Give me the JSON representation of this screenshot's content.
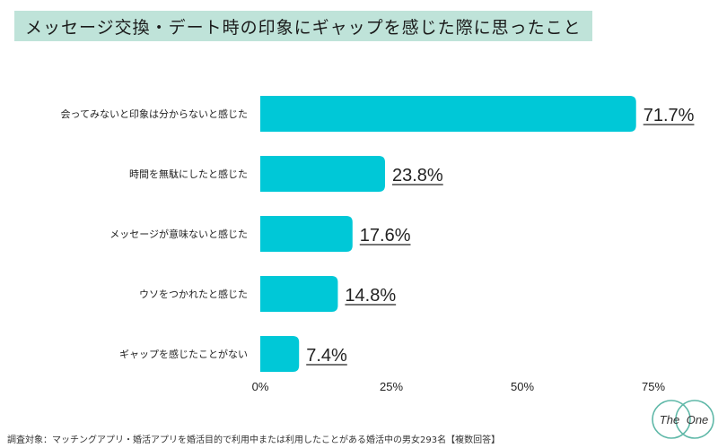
{
  "chart_data": {
    "type": "bar",
    "orientation": "horizontal",
    "title": "メッセージ交換・デート時の印象にギャップを感じた際に思ったこと",
    "categories": [
      "会ってみないと印象は分からないと感じた",
      "時間を無駄にしたと感じた",
      "メッセージが意味ないと感じた",
      "ウソをつかれたと感じた",
      "ギャップを感じたことがない"
    ],
    "values": [
      71.7,
      23.8,
      17.6,
      14.8,
      7.4
    ],
    "value_labels": [
      "71.7%",
      "23.8%",
      "17.6%",
      "14.8%",
      "7.4%"
    ],
    "xlim": [
      0,
      75
    ],
    "ticks": [
      0,
      25,
      50,
      75
    ],
    "tick_labels": [
      "0%",
      "25%",
      "50%",
      "75%"
    ],
    "grid": false,
    "bar_color": "#00c8d7"
  },
  "footnote": "調査対象：マッチングアプリ・婚活アプリを婚活目的で利用中または利用したことがある婚活中の男女293名【複数回答】",
  "logo": {
    "left_text": "The",
    "right_text": "One",
    "color": "#5fb8a8"
  },
  "title_bg_color": "#bfe3d9"
}
